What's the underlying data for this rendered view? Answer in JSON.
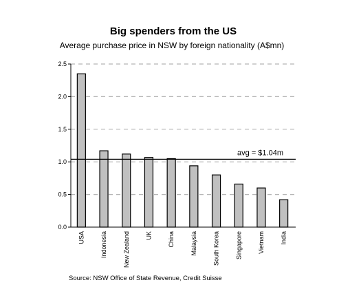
{
  "chart_data": {
    "type": "bar",
    "title": "Big spenders from the US",
    "subtitle": "Average purchase price in NSW by foreign nationality (A$mn)",
    "categories": [
      "USA",
      "Indonesia",
      "New Zealand",
      "UK",
      "China",
      "Malaysia",
      "South Korea",
      "Singapore",
      "Vietnam",
      "India"
    ],
    "values": [
      2.35,
      1.17,
      1.12,
      1.07,
      1.05,
      0.94,
      0.8,
      0.66,
      0.6,
      0.42
    ],
    "ylim": [
      0,
      2.5
    ],
    "yticks": [
      "0.0",
      "0.5",
      "1.0",
      "1.5",
      "2.0",
      "2.5"
    ],
    "grid": true,
    "reference_line": {
      "value": 1.04,
      "label": "avg = $1.04m"
    },
    "source": "Source: NSW Office of State Revenue, Credit Suisse",
    "colors": {
      "bar_fill": "#c0c0c0",
      "bar_stroke": "#000000",
      "grid": "#b5b5b5",
      "axis": "#000000"
    }
  }
}
